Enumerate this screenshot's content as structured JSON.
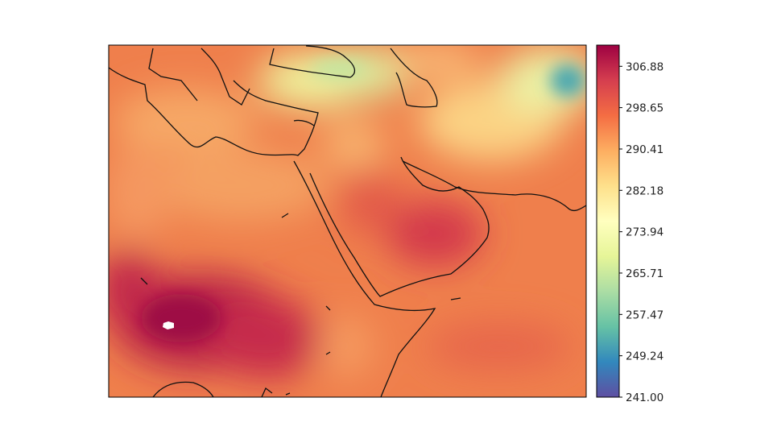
{
  "map": {
    "type": "filled-contour-field",
    "region": "Middle East / North-East Africa",
    "borders": "coastlines",
    "missing_patch_color": "#ffffff"
  },
  "colorbar": {
    "colormap": "Spectral_r",
    "range": [
      241.0,
      311.1
    ],
    "ticks": [
      241.0,
      249.24,
      257.47,
      265.71,
      273.94,
      282.18,
      290.41,
      298.65,
      306.88
    ],
    "tick_labels": [
      "241.00",
      "249.24",
      "257.47",
      "265.71",
      "273.94",
      "282.18",
      "290.41",
      "298.65",
      "306.88"
    ],
    "colors": [
      "#5e4fa2",
      "#3288bd",
      "#66c2a5",
      "#abdda4",
      "#e6f598",
      "#ffffbf",
      "#fee08b",
      "#fdae61",
      "#f46d43",
      "#d53e4f",
      "#9e0142"
    ]
  }
}
